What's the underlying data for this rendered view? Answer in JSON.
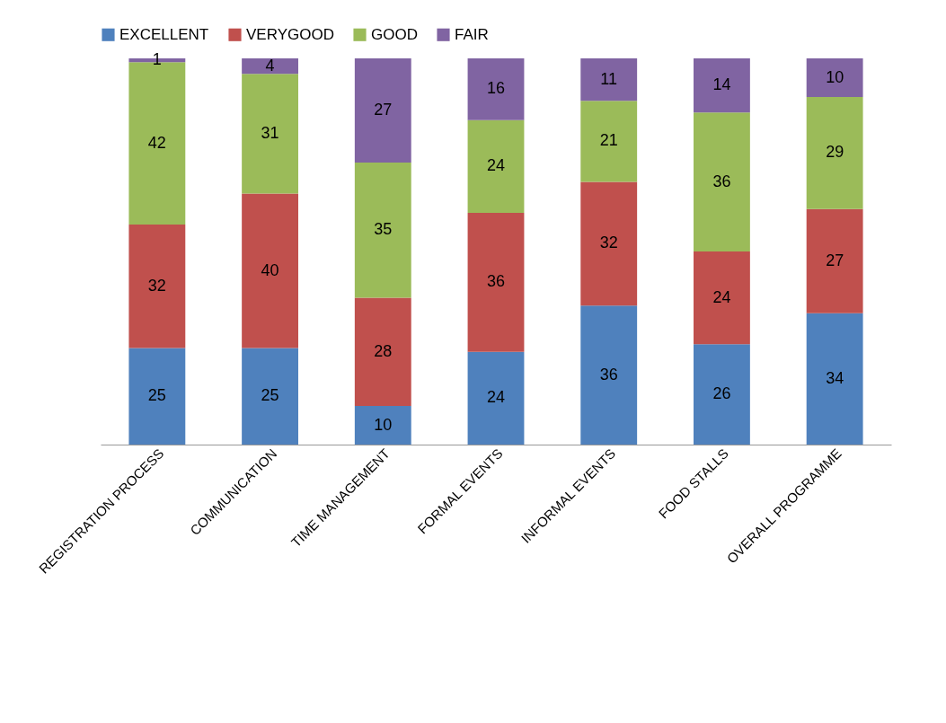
{
  "chart_data": {
    "type": "bar",
    "stacked": true,
    "data_labels": true,
    "legend": "top",
    "tick_labels": "x",
    "categories": [
      "REGISTRATION PROCESS",
      "COMMUNICATION",
      "TIME MANAGEMENT",
      "FORMAL EVENTS",
      "INFORMAL EVENTS",
      "FOOD STALLS",
      "OVERALL PROGRAMME"
    ],
    "series": [
      {
        "name": "EXCELLENT",
        "color": "#4f81bd",
        "values": [
          25,
          25,
          10,
          24,
          36,
          26,
          34
        ]
      },
      {
        "name": "VERYGOOD",
        "color": "#c0504d",
        "values": [
          32,
          40,
          28,
          36,
          32,
          24,
          27
        ]
      },
      {
        "name": "GOOD",
        "color": "#9bbb59",
        "values": [
          42,
          31,
          35,
          24,
          21,
          36,
          29
        ]
      },
      {
        "name": "FAIR",
        "color": "#8064a2",
        "values": [
          1,
          4,
          27,
          16,
          11,
          14,
          10
        ]
      }
    ]
  }
}
